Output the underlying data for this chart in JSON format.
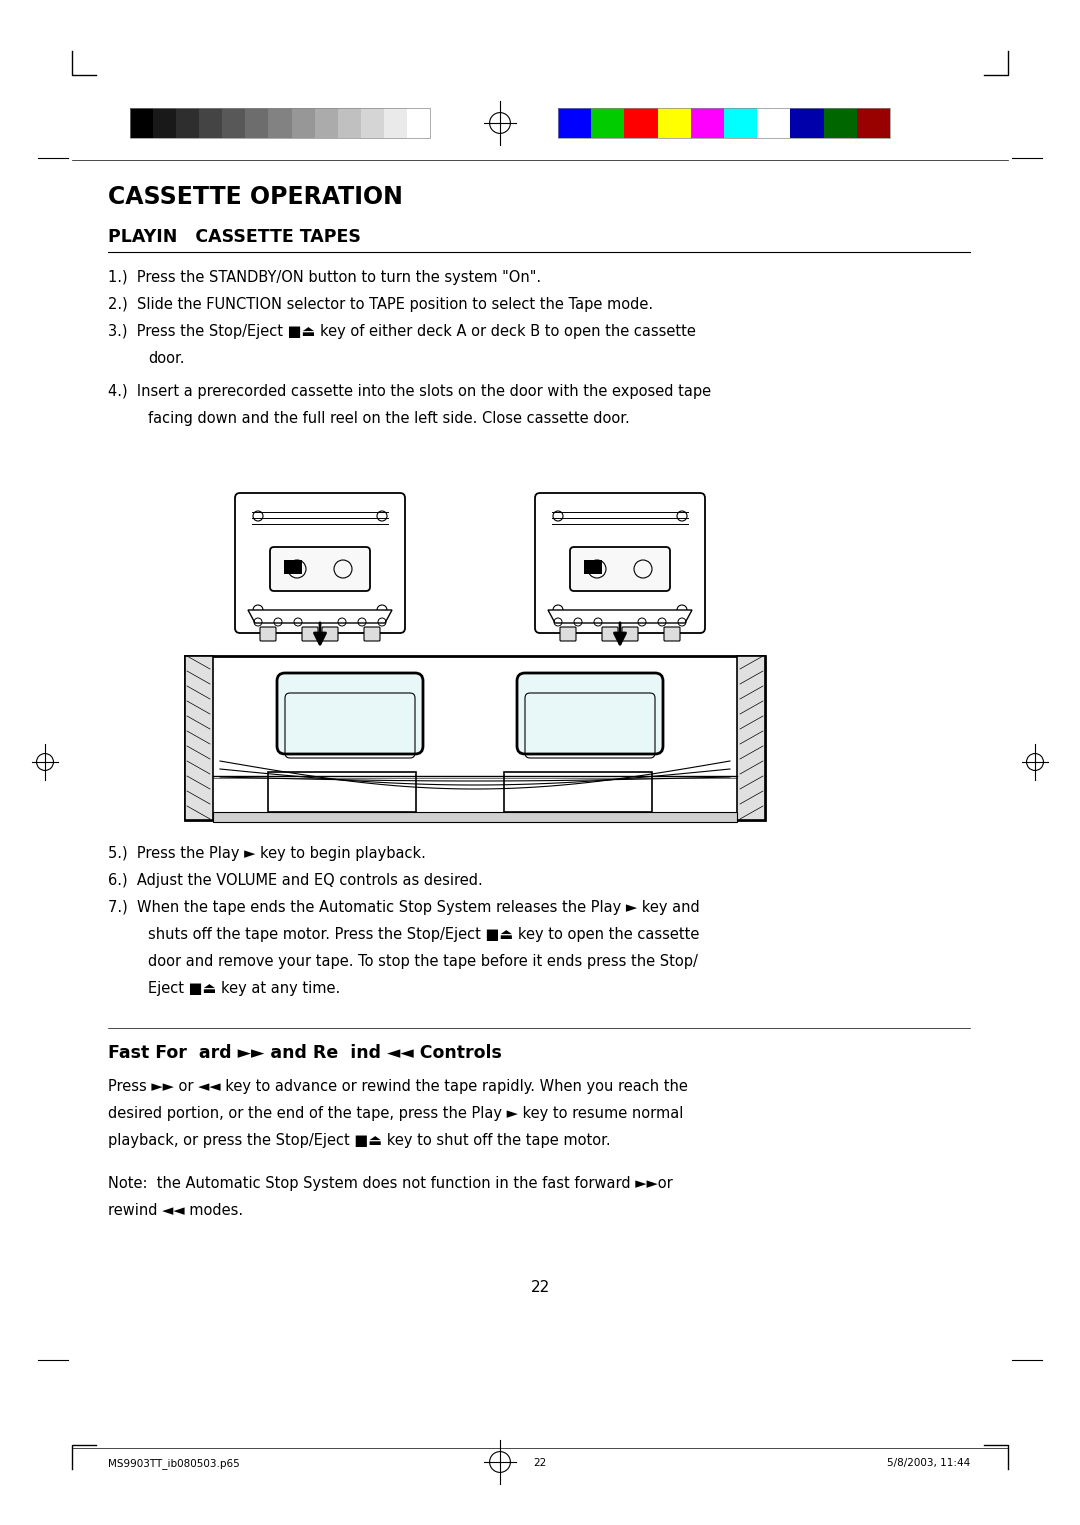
{
  "bg_color": "#ffffff",
  "title": "CASSETTE OPERATION",
  "subtitle": "PLAYIN   CASSETTE TAPES",
  "page_number": "22",
  "footer_left": "MS9903TT_ib080503.p65",
  "footer_center": "22",
  "footer_right": "5/8/2003, 11:44",
  "grayscale_colors": [
    "#000000",
    "#191919",
    "#2e2e2e",
    "#444444",
    "#585858",
    "#6d6d6d",
    "#828282",
    "#979797",
    "#ababab",
    "#c0c0c0",
    "#d5d5d5",
    "#eaeaea",
    "#ffffff"
  ],
  "color_bars": [
    "#0000ff",
    "#00cc00",
    "#ff0000",
    "#ffff00",
    "#ff00ff",
    "#00ffff",
    "#ffffff",
    "#0000aa",
    "#006600",
    "#990000"
  ],
  "fast_forward_title": "Fast For  ard ►► and Re  ind ◄◄ Controls"
}
